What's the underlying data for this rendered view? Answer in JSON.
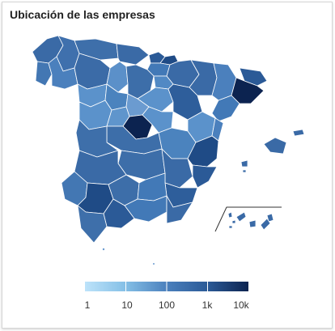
{
  "title": "Ubicación de las empresas",
  "scale": "log",
  "legend": {
    "ticks": [
      "1",
      "10",
      "100",
      "1k",
      "10k"
    ],
    "color_min": "#bde3fa",
    "color_max": "#0c2350"
  },
  "colors": {
    "region_light": "#6b9bd0",
    "region_mid": "#3a6aa6",
    "region_dark": "#1f4b86",
    "region_darkest": "#0c2350",
    "border": "#ffffff"
  },
  "highlighted_provinces": [
    "Madrid",
    "Barcelona",
    "Valencia"
  ]
}
